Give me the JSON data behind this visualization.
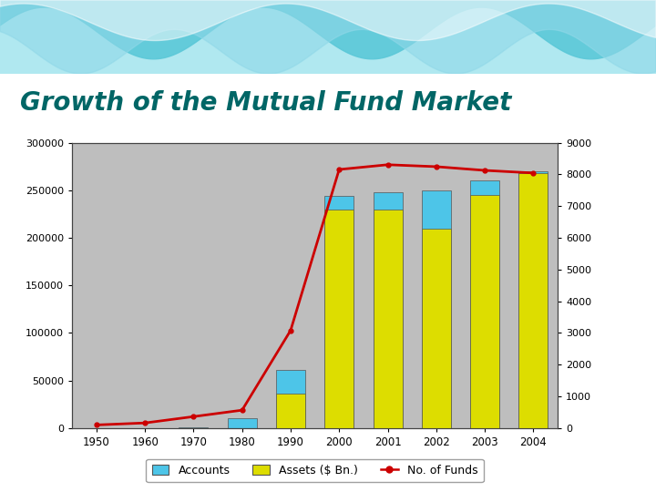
{
  "years": [
    1950,
    1960,
    1970,
    1980,
    1990,
    2000,
    2001,
    2002,
    2003,
    2004
  ],
  "accounts": [
    98,
    161,
    361,
    10000,
    61000,
    244000,
    248000,
    250000,
    260000,
    270000
  ],
  "assets": [
    1,
    2,
    2,
    135,
    36000,
    230000,
    230000,
    210000,
    245000,
    268000
  ],
  "no_of_funds": [
    98,
    161,
    361,
    564,
    3079,
    8155,
    8305,
    8244,
    8126,
    8044
  ],
  "bar_color_accounts": "#4DC5E8",
  "bar_color_assets": "#DDDD00",
  "line_color": "#CC0000",
  "bg_color": "#BEBEBE",
  "title": "Growth of the Mutual Fund Market",
  "title_color": "#006666",
  "left_ylim": [
    0,
    300000
  ],
  "right_ylim": [
    0,
    9000
  ],
  "left_yticks": [
    0,
    50000,
    100000,
    150000,
    200000,
    250000,
    300000
  ],
  "right_yticks": [
    0,
    1000,
    2000,
    3000,
    4000,
    5000,
    6000,
    7000,
    8000,
    9000
  ],
  "legend_labels": [
    "Accounts",
    "Assets ($ Bn.)",
    "No. of Funds"
  ]
}
